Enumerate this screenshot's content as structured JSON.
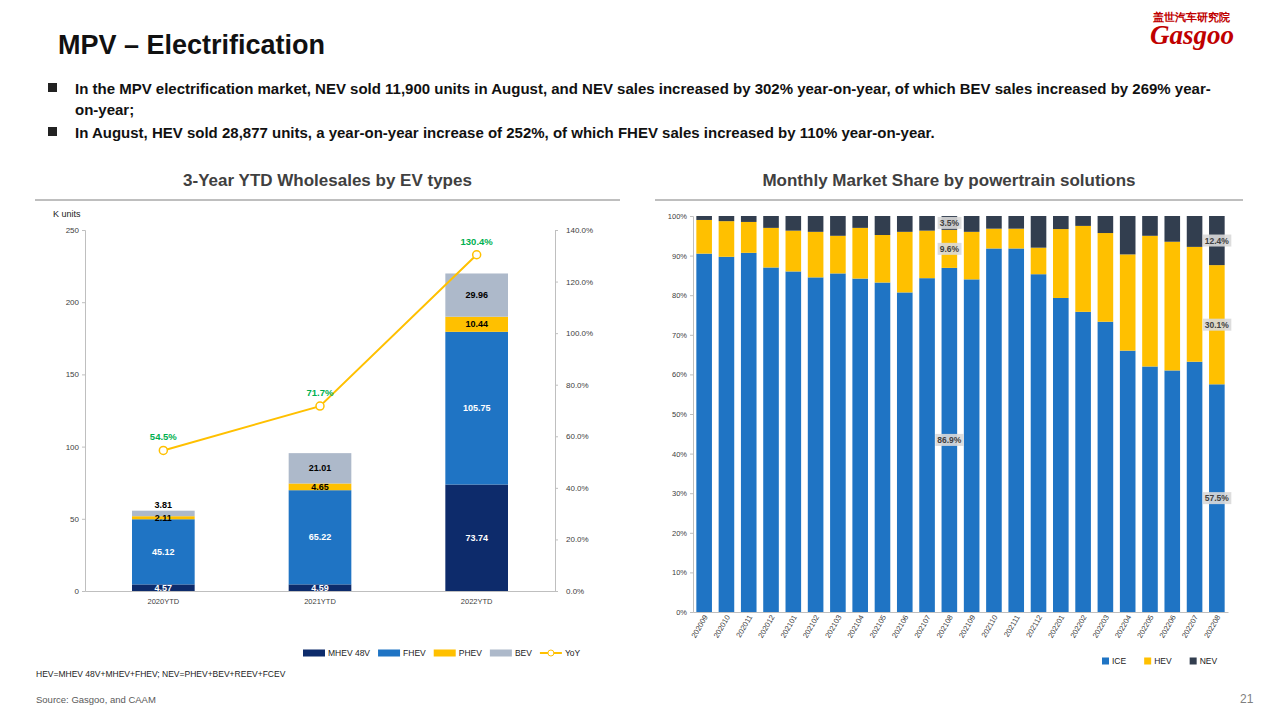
{
  "page": {
    "title": "MPV – Electrification",
    "logo": {
      "cn": "盖世汽车研究院",
      "en": "Gasgoo"
    },
    "bullets": [
      "In the MPV electrification market, NEV sold 11,900 units in August, and NEV sales increased by 302% year-on-year, of which BEV sales increased by 269% year-on-year;",
      "In August, HEV sold 28,877 units, a year-on-year increase of 252%, of which FHEV sales increased by 110% year-on-year."
    ],
    "note": "HEV=MHEV 48V+MHEV+FHEV; NEV=PHEV+BEV+REEV+FCEV",
    "source": "Source: Gasgoo, and CAAM",
    "page_number": "21"
  },
  "chart_data": [
    {
      "type": "bar",
      "title": "3-Year YTD Wholesales by EV types",
      "ylabel": "K units",
      "stacked": true,
      "data_labels": true,
      "grid": false,
      "legend": "bottom",
      "categories": [
        "2020YTD",
        "2021YTD",
        "2022YTD"
      ],
      "ylim": [
        0,
        250
      ],
      "yticks": [
        0,
        50,
        100,
        150,
        200,
        250
      ],
      "y2lim": [
        0,
        140
      ],
      "y2ticks": [
        {
          "value": 0,
          "label": "0.0%"
        },
        {
          "value": 20,
          "label": "20.0%"
        },
        {
          "value": 40,
          "label": "40.0%"
        },
        {
          "value": 60,
          "label": "60.0%"
        },
        {
          "value": 80,
          "label": "80.0%"
        },
        {
          "value": 100,
          "label": "100.0%"
        },
        {
          "value": 120,
          "label": "120.0%"
        },
        {
          "value": 140,
          "label": "140.0%"
        }
      ],
      "series": [
        {
          "name": "MHEV 48V",
          "type": "bar",
          "color": "#0d2b6b",
          "values": [
            4.57,
            4.59,
            73.74
          ]
        },
        {
          "name": "FHEV",
          "type": "bar",
          "color": "#1f74c4",
          "values": [
            45.12,
            65.22,
            105.75
          ]
        },
        {
          "name": "PHEV",
          "type": "bar",
          "color": "#ffc000",
          "values": [
            2.11,
            4.65,
            10.44
          ]
        },
        {
          "name": "BEV",
          "type": "bar",
          "color": "#adb9ca",
          "values": [
            3.81,
            21.01,
            29.96
          ]
        },
        {
          "name": "YoY",
          "type": "line",
          "axis": "y2",
          "color": "#ffc000",
          "marker": "circle",
          "line_style": "solid",
          "values": [
            54.5,
            71.7,
            130.4
          ],
          "value_labels": [
            "54.5%",
            "71.7%",
            "130.4%"
          ]
        }
      ]
    },
    {
      "type": "bar",
      "title": "Monthly Market Share by powertrain solutions",
      "stacked": true,
      "data_labels": true,
      "grid": false,
      "legend": "bottom-right",
      "categories": [
        "202009",
        "202010",
        "202011",
        "202012",
        "202101",
        "202102",
        "202103",
        "202104",
        "202105",
        "202106",
        "202107",
        "202108",
        "202109",
        "202110",
        "202111",
        "202112",
        "202201",
        "202202",
        "202203",
        "202204",
        "202205",
        "202206",
        "202207",
        "202208"
      ],
      "ylim": [
        0,
        100
      ],
      "yticks": [
        {
          "value": 0,
          "label": "0%"
        },
        {
          "value": 10,
          "label": "10%"
        },
        {
          "value": 20,
          "label": "20%"
        },
        {
          "value": 30,
          "label": "30%"
        },
        {
          "value": 40,
          "label": "40%"
        },
        {
          "value": 50,
          "label": "50%"
        },
        {
          "value": 60,
          "label": "60%"
        },
        {
          "value": 70,
          "label": "70%"
        },
        {
          "value": 80,
          "label": "80%"
        },
        {
          "value": 90,
          "label": "90%"
        },
        {
          "value": 100,
          "label": "100%"
        }
      ],
      "series": [
        {
          "name": "ICE",
          "color": "#1f74c4",
          "values": [
            90.5,
            89.7,
            90.7,
            87.0,
            86.0,
            84.5,
            85.5,
            84.2,
            83.2,
            80.7,
            84.3,
            86.9,
            84.0,
            91.8,
            91.8,
            85.3,
            79.3,
            75.8,
            73.3,
            66.0,
            62.0,
            61.0,
            63.2,
            57.5
          ],
          "value_labels": [
            null,
            null,
            null,
            null,
            null,
            null,
            null,
            null,
            null,
            null,
            null,
            "86.9%",
            null,
            null,
            null,
            null,
            null,
            null,
            null,
            null,
            null,
            null,
            null,
            "57.5%"
          ]
        },
        {
          "name": "HEV",
          "color": "#ffc000",
          "values": [
            8.5,
            9.0,
            7.8,
            10.0,
            10.3,
            11.5,
            9.5,
            12.8,
            12.0,
            15.3,
            12.0,
            9.6,
            12.0,
            5.0,
            5.0,
            6.7,
            17.4,
            21.7,
            22.4,
            24.3,
            33.0,
            32.5,
            29.0,
            30.1
          ],
          "value_labels": [
            null,
            null,
            null,
            null,
            null,
            null,
            null,
            null,
            null,
            null,
            null,
            "9.6%",
            null,
            null,
            null,
            null,
            null,
            null,
            null,
            null,
            null,
            null,
            null,
            "30.1%"
          ]
        },
        {
          "name": "NEV",
          "color": "#323e4f",
          "values": [
            1.0,
            1.3,
            1.5,
            3.0,
            3.7,
            4.0,
            5.0,
            3.0,
            4.8,
            4.0,
            3.7,
            3.5,
            4.0,
            3.2,
            3.2,
            8.0,
            3.3,
            2.5,
            4.3,
            9.7,
            5.0,
            6.5,
            7.8,
            12.4
          ],
          "value_labels": [
            null,
            null,
            null,
            null,
            null,
            null,
            null,
            null,
            null,
            null,
            null,
            "3.5%",
            null,
            null,
            null,
            null,
            null,
            null,
            null,
            null,
            null,
            null,
            null,
            "12.4%"
          ]
        }
      ]
    }
  ]
}
